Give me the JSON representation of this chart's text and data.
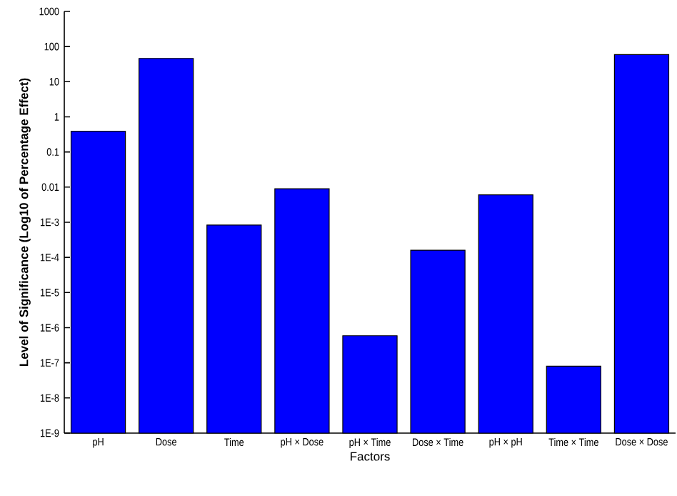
{
  "chart_data": {
    "type": "bar",
    "xlabel": "Factors",
    "ylabel": "Level of Significance (Log10 of Percentage Effect)",
    "categories": [
      "pH",
      "Dose",
      "Time",
      "pH × Dose",
      "pH × Time",
      "Dose × Time",
      "pH × pH",
      "Time × Time",
      "Dose × Dose"
    ],
    "values": [
      0.39,
      46,
      0.00083,
      0.009,
      5.9e-07,
      0.00016,
      0.006,
      8e-08,
      59
    ],
    "color": "#0000ff",
    "log": "y",
    "ylim": [
      1e-09,
      1000
    ],
    "yticks": [
      {
        "value": 1e-09,
        "label": "1E-9"
      },
      {
        "value": 1e-08,
        "label": "1E-8"
      },
      {
        "value": 1e-07,
        "label": "1E-7"
      },
      {
        "value": 1e-06,
        "label": "1E-6"
      },
      {
        "value": 1e-05,
        "label": "1E-5"
      },
      {
        "value": 0.0001,
        "label": "1E-4"
      },
      {
        "value": 0.001,
        "label": "1E-3"
      },
      0.01,
      0.1,
      1,
      10,
      100,
      1000
    ]
  }
}
